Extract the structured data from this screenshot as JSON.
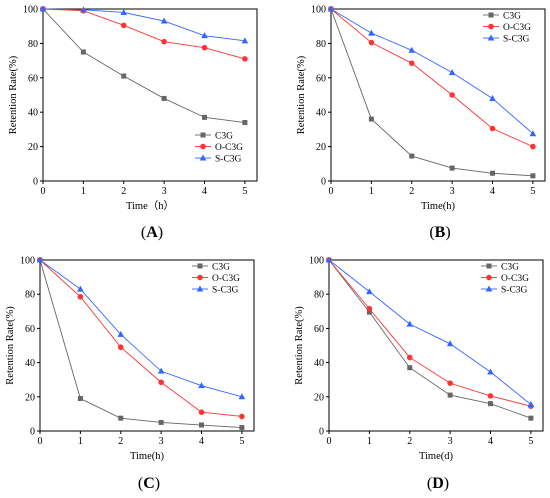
{
  "colors": {
    "C3G": "#666666",
    "O-C3G": "#ff3333",
    "S-C3G": "#3366ff"
  },
  "chart_data": [
    {
      "type": "line",
      "panel_label": "(A)",
      "xlabel": "Time（h）",
      "ylabel": "Retention Rate(%)",
      "x": [
        0,
        1,
        2,
        3,
        4,
        5
      ],
      "xlim": [
        0,
        5.3
      ],
      "ylim": [
        0,
        100
      ],
      "xticks": [
        "0",
        "1",
        "2",
        "3",
        "4",
        "5"
      ],
      "yticks": [
        "0",
        "20",
        "40",
        "60",
        "80",
        "100"
      ],
      "legend_position": "bottom-right",
      "series": [
        {
          "name": "C3G",
          "marker": "square",
          "values": [
            100,
            75,
            61,
            48,
            37,
            34
          ]
        },
        {
          "name": "O-C3G",
          "marker": "circle",
          "values": [
            100,
            99,
            90.5,
            81,
            77.5,
            71
          ]
        },
        {
          "name": "S-C3G",
          "marker": "triangle",
          "values": [
            100,
            99.5,
            98,
            93,
            84.5,
            81.5
          ]
        }
      ]
    },
    {
      "type": "line",
      "panel_label": "(B)",
      "xlabel": "Time(h)",
      "ylabel": "Retention Rate(%)",
      "x": [
        0,
        1,
        2,
        3,
        4,
        5
      ],
      "xlim": [
        0,
        5.3
      ],
      "ylim": [
        0,
        100
      ],
      "xticks": [
        "0",
        "1",
        "2",
        "3",
        "4",
        "5"
      ],
      "yticks": [
        "0",
        "20",
        "40",
        "60",
        "80",
        "100"
      ],
      "legend_position": "top-right",
      "series": [
        {
          "name": "C3G",
          "marker": "square",
          "values": [
            100,
            36,
            14.5,
            7.5,
            4.5,
            3
          ]
        },
        {
          "name": "O-C3G",
          "marker": "circle",
          "values": [
            100,
            80.5,
            68.5,
            50,
            30.5,
            20
          ]
        },
        {
          "name": "S-C3G",
          "marker": "triangle",
          "values": [
            100,
            86,
            76,
            63,
            48,
            27.5
          ]
        }
      ]
    },
    {
      "type": "line",
      "panel_label": "(C)",
      "xlabel": "Time(h)",
      "ylabel": "Retention Rate(%)",
      "x": [
        0,
        1,
        2,
        3,
        4,
        5
      ],
      "xlim": [
        0,
        5.3
      ],
      "ylim": [
        0,
        100
      ],
      "xticks": [
        "0",
        "1",
        "2",
        "3",
        "4",
        "5"
      ],
      "yticks": [
        "0",
        "20",
        "40",
        "60",
        "80",
        "100"
      ],
      "legend_position": "top-right",
      "series": [
        {
          "name": "C3G",
          "marker": "square",
          "values": [
            100,
            19,
            7.5,
            5,
            3.5,
            2
          ]
        },
        {
          "name": "O-C3G",
          "marker": "circle",
          "values": [
            100,
            78.5,
            49,
            28.5,
            11,
            8.5
          ]
        },
        {
          "name": "S-C3G",
          "marker": "triangle",
          "values": [
            100,
            83,
            56.5,
            35,
            26.5,
            20
          ]
        }
      ]
    },
    {
      "type": "line",
      "panel_label": "(D)",
      "xlabel": "Time(d)",
      "ylabel": "Retention Rate(%)",
      "x": [
        0,
        1,
        2,
        3,
        4,
        5
      ],
      "xlim": [
        0,
        5.3
      ],
      "ylim": [
        0,
        100
      ],
      "xticks": [
        "0",
        "1",
        "2",
        "3",
        "4",
        "5"
      ],
      "yticks": [
        "0",
        "20",
        "40",
        "60",
        "80",
        "100"
      ],
      "legend_position": "top-right",
      "series": [
        {
          "name": "C3G",
          "marker": "square",
          "values": [
            100,
            69.5,
            37,
            21,
            16,
            7.5
          ]
        },
        {
          "name": "O-C3G",
          "marker": "circle",
          "values": [
            100,
            71.5,
            43,
            28,
            20.5,
            14.5
          ]
        },
        {
          "name": "S-C3G",
          "marker": "triangle",
          "values": [
            100,
            81.5,
            62.5,
            51,
            34.5,
            15.5
          ]
        }
      ]
    }
  ]
}
